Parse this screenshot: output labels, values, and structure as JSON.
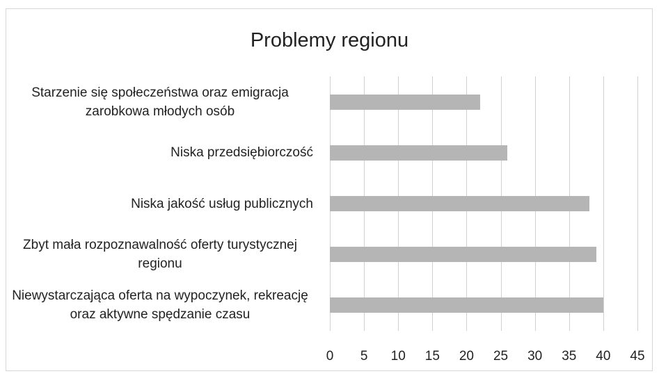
{
  "chart_data": {
    "type": "bar",
    "orientation": "horizontal",
    "title": "Problemy regionu",
    "categories": [
      "Starzenie się społeczeństwa oraz emigracja zarobkowa młodych osób",
      "Niska przedsiębiorczość",
      "Niska jakość usług publicznych",
      "Zbyt mała rozpoznawalność oferty turystycznej regionu",
      "Niewystarczająca oferta na wypoczynek, rekreację oraz aktywne spędzanie czasu"
    ],
    "values": [
      22,
      26,
      38,
      39,
      40
    ],
    "color": "#b5b5b5",
    "xlim": [
      0,
      45
    ],
    "xticks": [
      0,
      5,
      10,
      15,
      20,
      25,
      30,
      35,
      40,
      45
    ],
    "grid": true
  }
}
